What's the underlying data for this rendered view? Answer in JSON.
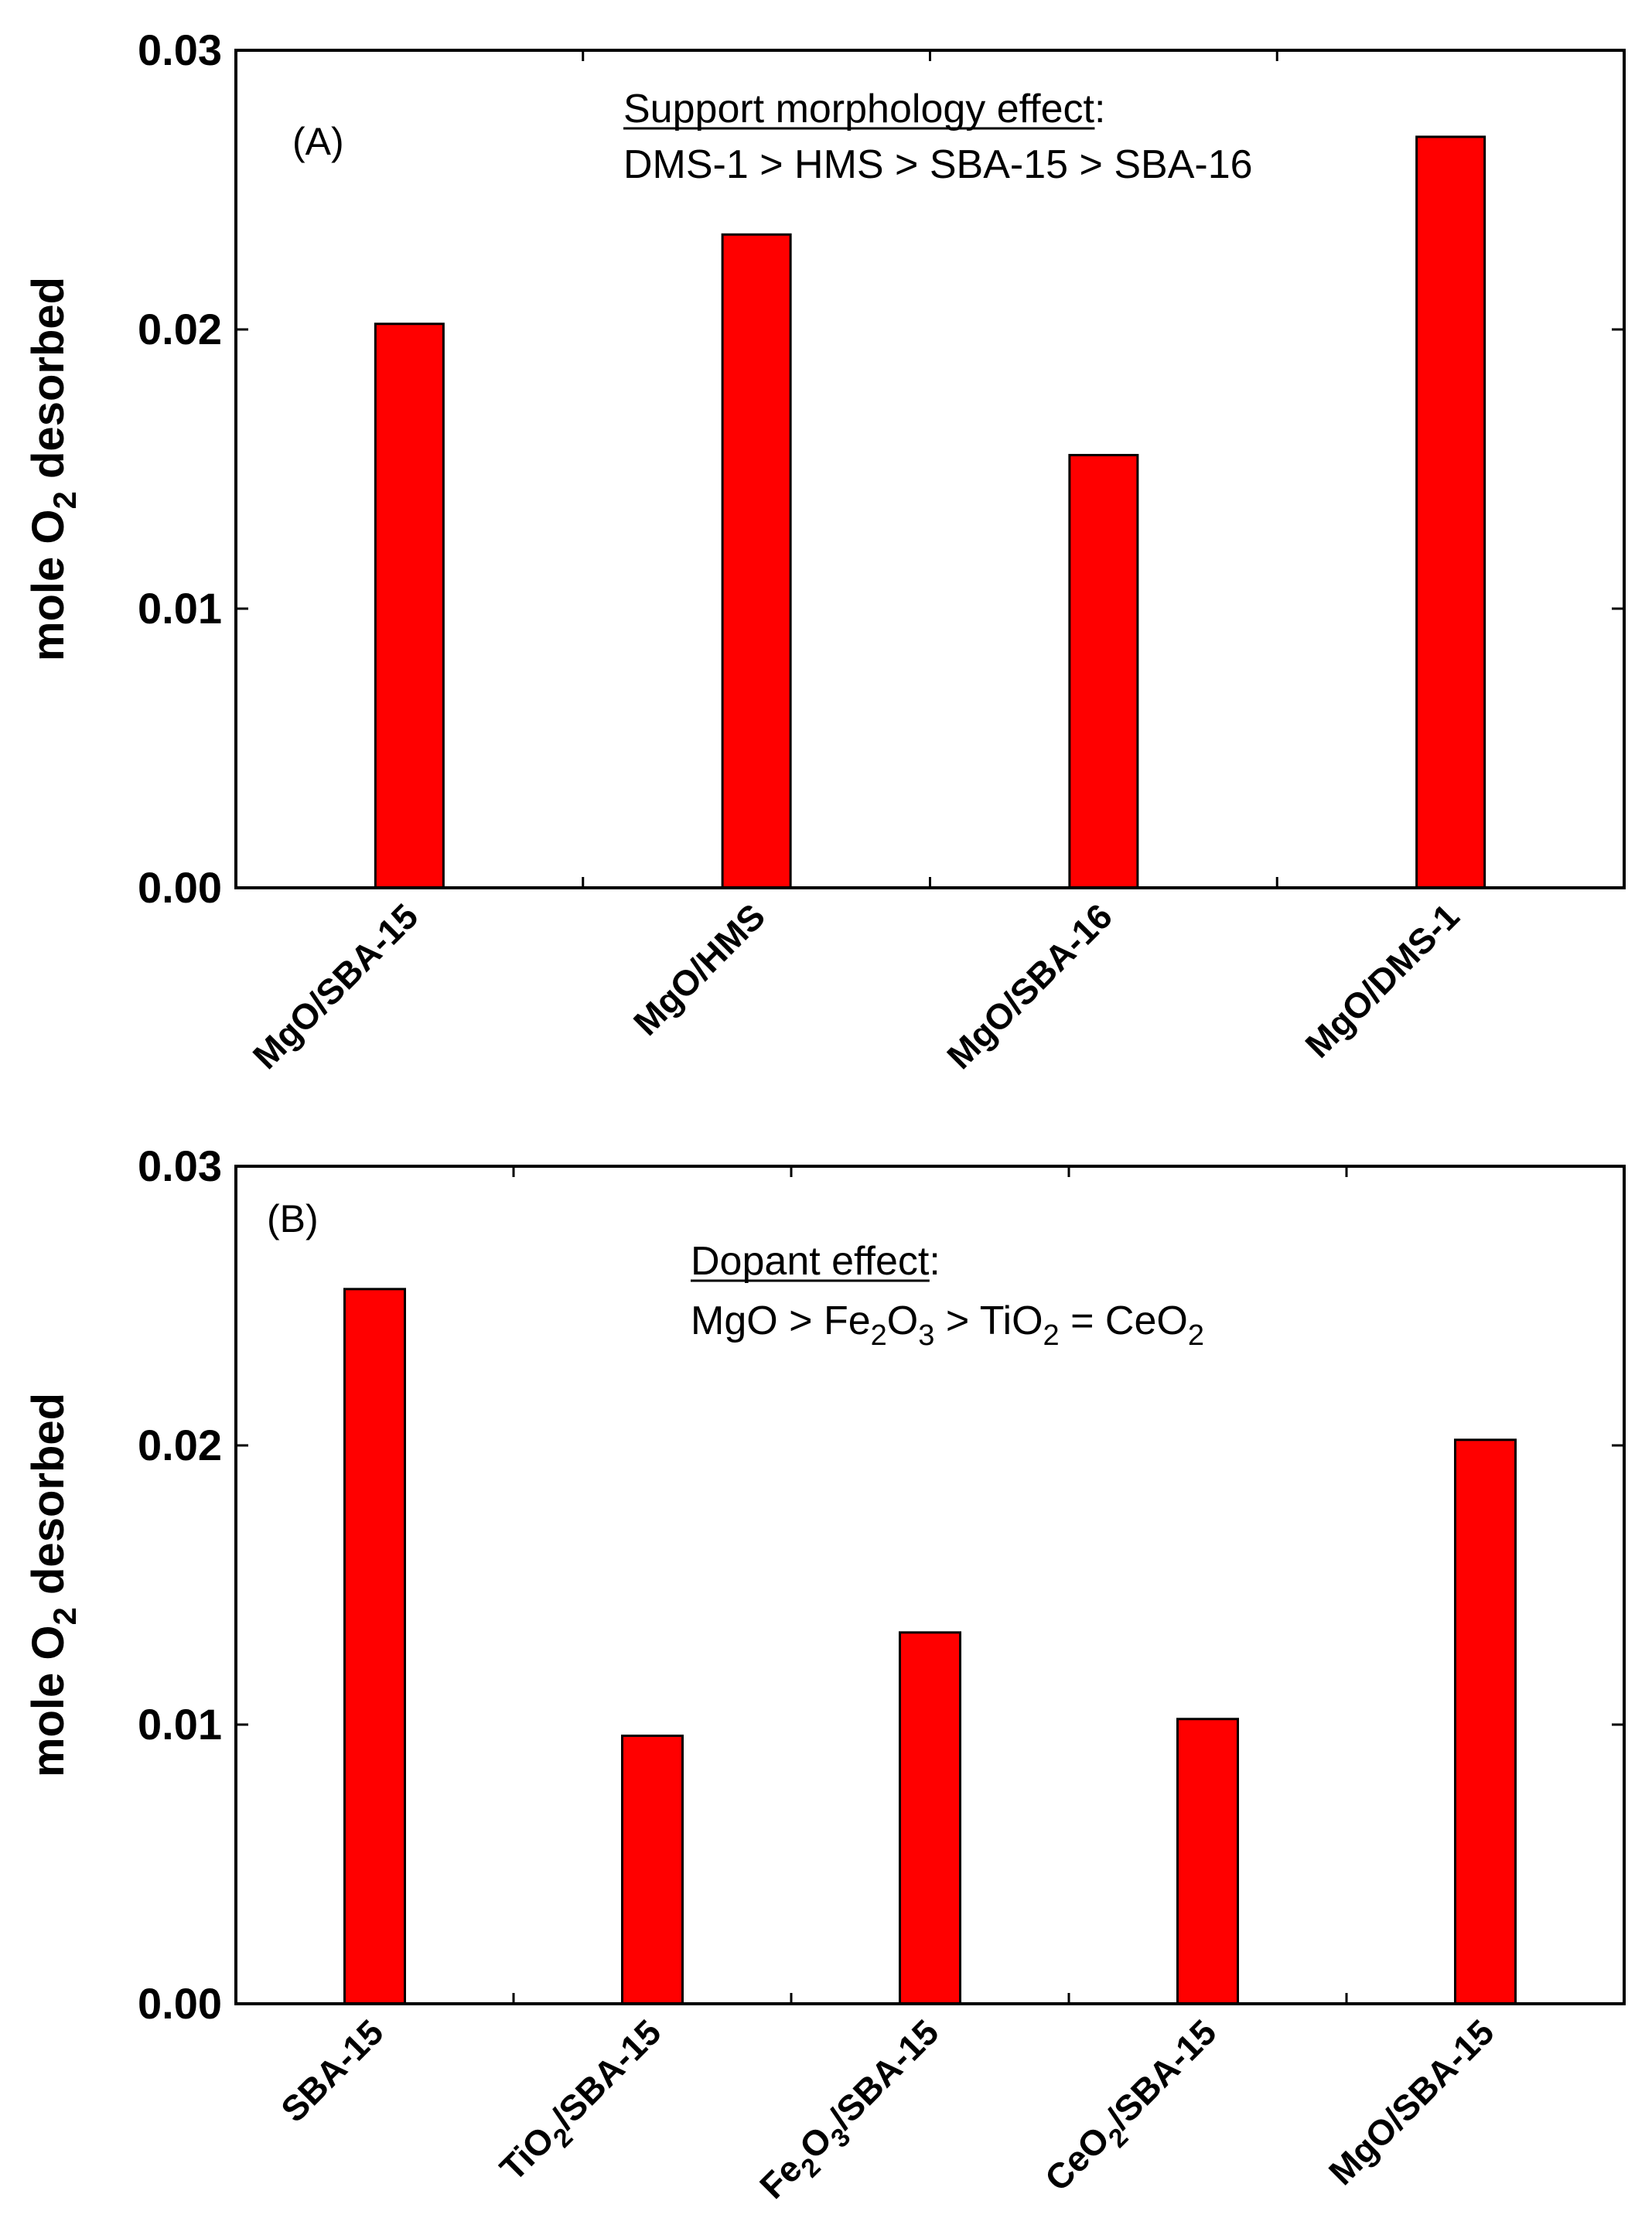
{
  "chart_data": [
    {
      "type": "bar",
      "panel": "(A)",
      "categories": [
        "MgO/SBA-15",
        "MgO/HMS",
        "MgO/SBA-16",
        "MgO/DMS-1"
      ],
      "values": [
        0.0202,
        0.0234,
        0.0155,
        0.0269
      ],
      "bar_color": "#ff0000",
      "ylabel": "mole O2 desorbed",
      "ylim": [
        0,
        0.03
      ],
      "yticks": [
        "0.00",
        "0.01",
        "0.02",
        "0.03"
      ],
      "annotation_title": "Support morphology effect:",
      "annotation_line": "DMS-1 > HMS > SBA-15 > SBA-16"
    },
    {
      "type": "bar",
      "panel": "(B)",
      "categories": [
        "SBA-15",
        "TiO2/SBA-15",
        "Fe2O3/SBA-15",
        "CeO2/SBA-15",
        "MgO/SBA-15"
      ],
      "values": [
        0.0256,
        0.0096,
        0.0133,
        0.0102,
        0.0202
      ],
      "bar_color": "#ff0000",
      "ylabel": "mole O2 desorbed",
      "ylim": [
        0,
        0.03
      ],
      "yticks": [
        "0.00",
        "0.01",
        "0.02",
        "0.03"
      ],
      "annotation_title": "Dopant effect:",
      "annotation_line": "MgO > Fe2O3 > TiO2 = CeO2"
    }
  ]
}
